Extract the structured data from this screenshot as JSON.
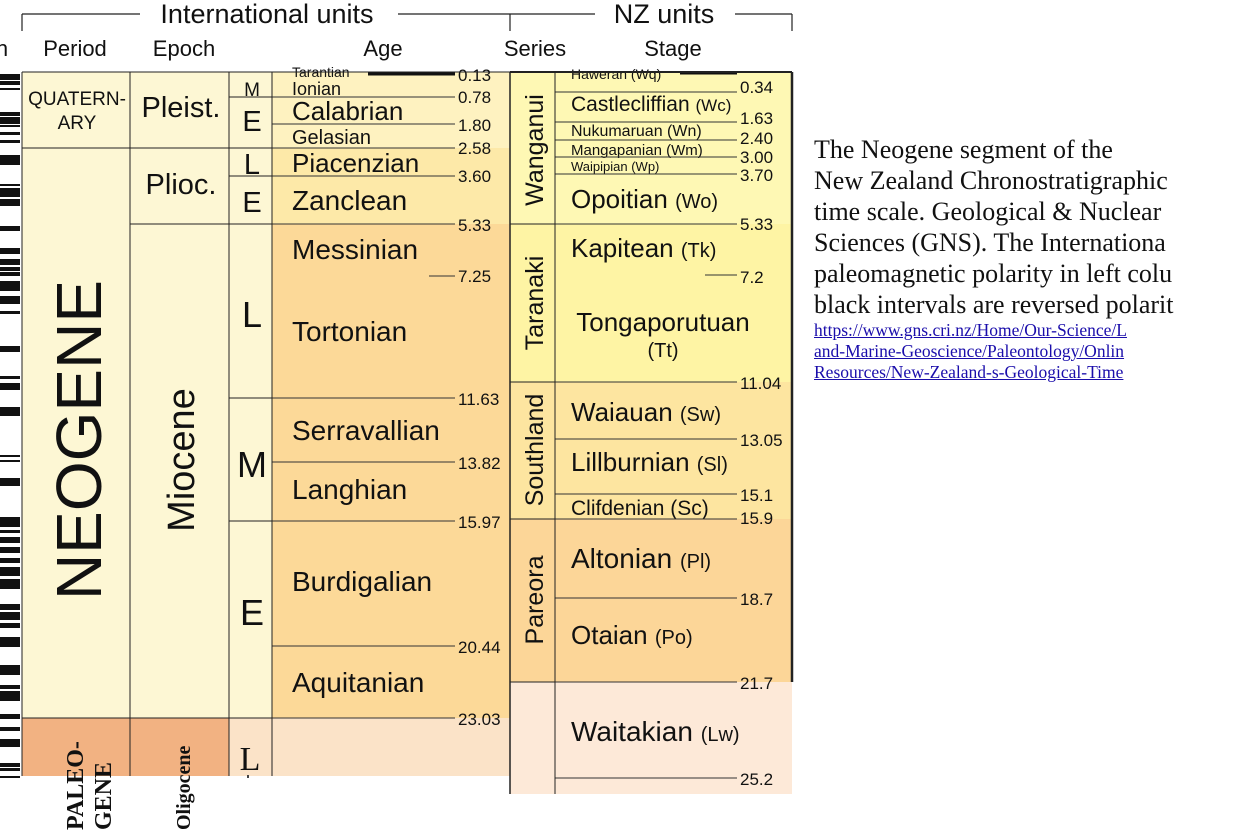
{
  "header": {
    "international": "International units",
    "nz": "NZ units",
    "col_partial": "n",
    "col_period": "Period",
    "col_epoch": "Epoch",
    "col_age": "Age",
    "col_series": "Series",
    "col_stage": "Stage"
  },
  "periods": {
    "quaternary": "QUATERN-ARY",
    "quaternary_line1": "QUATERN-",
    "quaternary_line2": "ARY",
    "neogene": "NEOGENE",
    "paleogene_line1": "PALEO-",
    "paleogene_line2": "GENE"
  },
  "epochs": {
    "pleistocene": "Pleist.",
    "pliocene": "Plioc.",
    "miocene": "Miocene",
    "oligocene": "Oligocene"
  },
  "subepochs": [
    "M",
    "E",
    "L",
    "E",
    "L",
    "M",
    "E",
    "L"
  ],
  "ages": [
    "Tarantian",
    "Ionian",
    "Calabrian",
    "Gelasian",
    "Piacenzian",
    "Zanclean",
    "Messinian",
    "Tortonian",
    "Serravallian",
    "Langhian",
    "Burdigalian",
    "Aquitanian"
  ],
  "age_boundaries": [
    "0.13",
    "0.78",
    "1.80",
    "2.58",
    "3.60",
    "5.33",
    "7.25",
    "11.63",
    "13.82",
    "15.97",
    "20.44",
    "23.03"
  ],
  "series": [
    "Wanganui",
    "Taranaki",
    "Southland",
    "Pareora"
  ],
  "stages": {
    "haweran": "Haweran (Wq)",
    "castlecliffian": "Castlecliffian",
    "castlecliffian_code": "(Wc)",
    "nukumaruan": "Nukumaruan (Wn)",
    "mangapanian": "Mangapanian (Wm)",
    "waipipian": "Waipipian (Wp)",
    "opoitian": "Opoitian",
    "opoitian_code": "(Wo)",
    "kapitean": "Kapitean",
    "kapitean_code": "(Tk)",
    "tongaporutuan": "Tongaporutuan",
    "tongaporutuan_code": "(Tt)",
    "waiauan": "Waiauan",
    "waiauan_code": "(Sw)",
    "lillburnian": "Lillburnian",
    "lillburnian_code": "(Sl)",
    "clifdenian": "Clifdenian (Sc)",
    "altonian": "Altonian",
    "altonian_code": "(Pl)",
    "otaian": "Otaian",
    "otaian_code": "(Po)",
    "waitakian": "Waitakian",
    "waitakian_code": "(Lw)"
  },
  "stage_boundaries": [
    "0.34",
    "1.63",
    "2.40",
    "3.00",
    "3.70",
    "5.33",
    "7.2",
    "11.04",
    "13.05",
    "15.1",
    "15.9",
    "18.7",
    "21.7",
    "25.2"
  ],
  "caption": {
    "line1": "The Neogene segment of the",
    "line2": "New Zealand Chronostratigraphic",
    "line3": "time scale. Geological & Nuclear",
    "line4": "Sciences (GNS).  The Internationa",
    "line5": "paleomagnetic polarity in left colu",
    "line6": "black intervals are reversed polarit",
    "link1": "https://www.gns.cri.nz/Home/Our-Science/L",
    "link2": "and-Marine-Geoscience/Paleontology/Onlin",
    "link3": "Resources/New-Zealand-s-Geological-Time"
  },
  "colors": {
    "quaternary": "#fdf7d4",
    "neogene": "#fdf7d4",
    "paleogene": "#f2b282",
    "pleistocene_ages": "#fef2c0",
    "pliocene_ages": "#fde9a8",
    "miocene_ages": "#fcd998",
    "oligocene_ages": "#fbe3c8",
    "wanganui": "#fef8b4",
    "taranaki": "#fef4a4",
    "southland": "#fde5a0",
    "pareora": "#fcd698",
    "landon": "#fde9d8",
    "link": "#1a0dab"
  }
}
